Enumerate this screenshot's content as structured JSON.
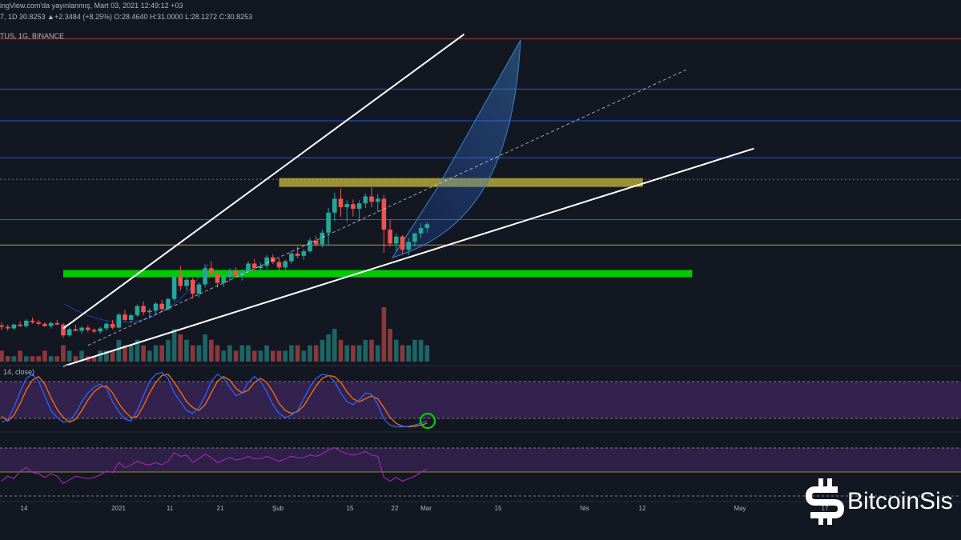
{
  "header": {
    "line1": "ingView.com'da yayınlanmış, Mart 03, 2021 12:49:12 +03",
    "ohlc_line": "7, 1D 30.8253 ▲+2.3484 (+8.25%) O:28.4640 H:31.0000 L:28.1272 C:30.8253",
    "symbol_line": "TUS, 1G, BINANCE"
  },
  "stoch_label": "14, close)",
  "x_ticks": [
    "14",
    "2021",
    "11",
    "21",
    "Şub",
    "15",
    "22",
    "Mar",
    "15",
    "Nis",
    "12",
    "May",
    "17"
  ],
  "brand": {
    "name": "BitcoinSis",
    "logo_icon": "bitcoin-s-icon"
  },
  "colors": {
    "background": "#131722",
    "up": "#26a69a",
    "down": "#ef5350",
    "trendline": "#ffffff",
    "support_zone": "#00d400",
    "resistance_zone": "#c8b93c",
    "stoch_bg": "#4a2a6a",
    "rsi_line": "#9c27b0"
  },
  "chart_data": {
    "type": "candlestick",
    "timeframe": "1D",
    "exchange": "BINANCE",
    "last": {
      "open": 28.464,
      "high": 31.0,
      "low": 28.1272,
      "close": 30.8253,
      "change": 2.3484,
      "change_pct": 8.25
    },
    "candles": [
      [
        7.9,
        8.3,
        7.3,
        7.7
      ],
      [
        7.7,
        8.0,
        7.2,
        7.5
      ],
      [
        7.5,
        8.1,
        7.3,
        8.0
      ],
      [
        8.0,
        8.4,
        7.7,
        7.8
      ],
      [
        7.8,
        8.7,
        7.6,
        8.5
      ],
      [
        8.5,
        8.9,
        8.1,
        8.3
      ],
      [
        8.3,
        8.6,
        7.9,
        8.1
      ],
      [
        8.1,
        8.3,
        7.7,
        7.8
      ],
      [
        7.8,
        8.4,
        7.5,
        8.2
      ],
      [
        8.2,
        8.6,
        7.9,
        8.0
      ],
      [
        8.0,
        8.2,
        6.3,
        6.6
      ],
      [
        6.6,
        7.6,
        6.4,
        7.4
      ],
      [
        7.4,
        8.0,
        7.1,
        7.2
      ],
      [
        7.2,
        7.8,
        6.8,
        7.6
      ],
      [
        7.6,
        7.9,
        7.0,
        7.3
      ],
      [
        7.3,
        7.5,
        6.9,
        7.1
      ],
      [
        7.1,
        7.7,
        6.8,
        7.5
      ],
      [
        7.5,
        8.3,
        7.2,
        8.1
      ],
      [
        8.1,
        8.6,
        7.4,
        7.6
      ],
      [
        7.6,
        9.5,
        7.5,
        9.3
      ],
      [
        9.3,
        9.9,
        8.4,
        8.6
      ],
      [
        8.6,
        9.4,
        8.2,
        9.2
      ],
      [
        9.2,
        10.6,
        9.0,
        10.4
      ],
      [
        10.4,
        11.0,
        9.2,
        9.6
      ],
      [
        9.6,
        10.1,
        8.9,
        9.8
      ],
      [
        9.8,
        10.9,
        9.4,
        10.7
      ],
      [
        10.7,
        11.2,
        9.6,
        10.0
      ],
      [
        10.0,
        11.5,
        9.8,
        11.3
      ],
      [
        11.3,
        14.5,
        11.0,
        14.2
      ],
      [
        14.2,
        15.6,
        12.4,
        13.0
      ],
      [
        13.0,
        14.2,
        12.4,
        13.8
      ],
      [
        13.8,
        14.1,
        11.4,
        12.0
      ],
      [
        12.0,
        13.5,
        11.5,
        13.2
      ],
      [
        13.2,
        15.8,
        12.8,
        15.3
      ],
      [
        15.3,
        16.2,
        14.2,
        14.6
      ],
      [
        14.6,
        15.0,
        12.8,
        13.4
      ],
      [
        13.4,
        14.6,
        12.9,
        14.2
      ],
      [
        14.2,
        15.3,
        13.6,
        15.0
      ],
      [
        15.0,
        15.4,
        14.1,
        14.4
      ],
      [
        14.4,
        15.2,
        13.7,
        14.9
      ],
      [
        14.9,
        16.2,
        14.6,
        15.9
      ],
      [
        15.9,
        16.5,
        15.0,
        15.3
      ],
      [
        15.3,
        16.0,
        14.7,
        15.6
      ],
      [
        15.6,
        17.0,
        15.2,
        16.7
      ],
      [
        16.7,
        17.1,
        15.8,
        16.1
      ],
      [
        16.1,
        16.6,
        15.0,
        15.4
      ],
      [
        15.4,
        16.4,
        15.1,
        16.2
      ],
      [
        16.2,
        17.5,
        15.9,
        17.2
      ],
      [
        17.2,
        18.1,
        16.6,
        16.9
      ],
      [
        16.9,
        17.8,
        16.4,
        17.5
      ],
      [
        17.5,
        19.2,
        17.3,
        18.9
      ],
      [
        18.9,
        19.5,
        18.1,
        18.4
      ],
      [
        18.4,
        20.3,
        18.0,
        19.9
      ],
      [
        19.9,
        23.1,
        18.3,
        22.5
      ],
      [
        22.5,
        25.1,
        21.4,
        24.3
      ],
      [
        24.3,
        25.6,
        22.0,
        23.2
      ],
      [
        23.2,
        24.1,
        21.3,
        23.6
      ],
      [
        23.6,
        24.2,
        22.0,
        23.0
      ],
      [
        23.0,
        24.1,
        21.5,
        23.7
      ],
      [
        23.7,
        25.0,
        23.1,
        24.6
      ],
      [
        24.6,
        25.8,
        23.2,
        23.9
      ],
      [
        23.9,
        24.9,
        22.6,
        24.3
      ],
      [
        24.3,
        24.8,
        17.3,
        20.3
      ],
      [
        20.3,
        21.6,
        18.1,
        18.5
      ],
      [
        18.5,
        19.8,
        17.4,
        19.4
      ],
      [
        19.4,
        19.6,
        17.2,
        17.7
      ],
      [
        17.7,
        19.2,
        17.0,
        18.7
      ],
      [
        18.7,
        19.9,
        18.1,
        19.8
      ],
      [
        19.8,
        21.1,
        19.2,
        20.5
      ],
      [
        20.5,
        21.3,
        19.9,
        21.0
      ]
    ],
    "volume": [
      2,
      1,
      1,
      2,
      1,
      1,
      1,
      2,
      1,
      1,
      3,
      2,
      1,
      2,
      1,
      1,
      2,
      2,
      2,
      4,
      3,
      3,
      4,
      3,
      2,
      3,
      3,
      4,
      6,
      5,
      4,
      3,
      3,
      5,
      4,
      3,
      2,
      3,
      2,
      3,
      3,
      2,
      2,
      3,
      2,
      2,
      2,
      3,
      3,
      2,
      3,
      3,
      4,
      5,
      6,
      4,
      3,
      3,
      3,
      4,
      4,
      3,
      10,
      6,
      4,
      3,
      3,
      4,
      4,
      3
    ],
    "horizontal_levels": [
      {
        "price": 45.0,
        "color": "#b2443f"
      },
      {
        "price": 38.5,
        "color": "#2962ff"
      },
      {
        "price": 34.4,
        "color": "#2962ff"
      },
      {
        "price": 29.6,
        "color": "#2962ff"
      },
      {
        "price": 26.8,
        "color": "#26a69a",
        "dashed": true
      },
      {
        "price": 21.6,
        "color": "#b2443f"
      },
      {
        "price": 18.3,
        "color": "#c8b93c"
      }
    ],
    "zones": [
      {
        "name": "resistance",
        "price": 26.4,
        "from_bar": 45,
        "to_bar": 104,
        "color": "#c8b93c"
      },
      {
        "name": "support",
        "price": 14.6,
        "from_bar": 10,
        "to_bar": 112,
        "color": "#00d400"
      }
    ],
    "trendlines": [
      {
        "from": [
          10,
          7.5
        ],
        "to": [
          75,
          45.6
        ],
        "style": "solid"
      },
      {
        "from": [
          10,
          2.6
        ],
        "to": [
          122,
          30.8
        ],
        "style": "solid"
      },
      {
        "from": [
          14,
          5.3
        ],
        "to": [
          111,
          41.0
        ],
        "style": "dashed"
      }
    ],
    "stoch_rsi": {
      "k": [
        10,
        14,
        35,
        62,
        85,
        92,
        80,
        55,
        30,
        18,
        10,
        12,
        25,
        45,
        60,
        70,
        75,
        68,
        45,
        28,
        15,
        12,
        30,
        55,
        80,
        92,
        95,
        85,
        60,
        45,
        30,
        25,
        35,
        55,
        80,
        92,
        85,
        70,
        55,
        60,
        78,
        88,
        80,
        62,
        40,
        25,
        18,
        22,
        30,
        50,
        70,
        85,
        92,
        90,
        80,
        60,
        45,
        40,
        48,
        60,
        58,
        40,
        15,
        5,
        2,
        2,
        3,
        5,
        8,
        12
      ],
      "d": [
        20,
        12,
        22,
        42,
        65,
        82,
        88,
        75,
        52,
        32,
        18,
        10,
        15,
        30,
        48,
        62,
        70,
        72,
        60,
        42,
        28,
        18,
        20,
        38,
        60,
        78,
        90,
        92,
        78,
        62,
        45,
        35,
        30,
        40,
        60,
        80,
        88,
        82,
        68,
        60,
        65,
        78,
        85,
        78,
        62,
        42,
        30,
        25,
        28,
        38,
        55,
        72,
        85,
        90,
        88,
        78,
        62,
        50,
        45,
        50,
        55,
        50,
        35,
        18,
        8,
        3,
        2,
        3,
        5,
        8
      ]
    },
    "rsi": [
      42,
      46,
      44,
      50,
      53,
      49,
      48,
      45,
      48,
      46,
      40,
      43,
      46,
      45,
      44,
      45,
      47,
      50,
      49,
      57,
      53,
      55,
      58,
      56,
      55,
      57,
      55,
      58,
      65,
      62,
      63,
      57,
      60,
      64,
      61,
      57,
      59,
      61,
      59,
      60,
      62,
      60,
      60,
      62,
      60,
      58,
      60,
      62,
      61,
      61,
      63,
      62,
      64,
      67,
      69,
      66,
      64,
      63,
      64,
      66,
      63,
      62,
      45,
      42,
      45,
      42,
      44,
      46,
      49,
      52
    ]
  }
}
